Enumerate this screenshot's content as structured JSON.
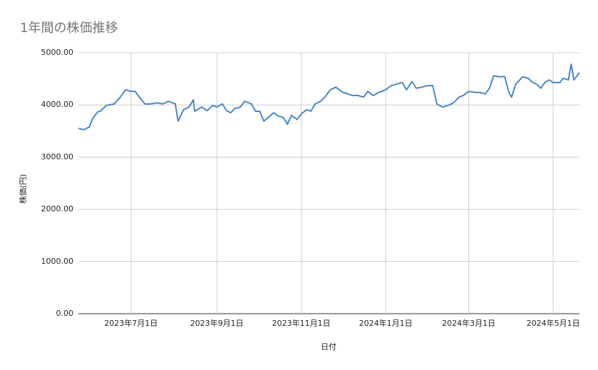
{
  "chart_data": {
    "type": "line",
    "title": "1年間の株価推移",
    "x_label": "日付",
    "y_label": "株価(円)",
    "x": [
      "2023-05-24",
      "2023-05-28",
      "2023-06-01",
      "2023-06-03",
      "2023-06-07",
      "2023-06-09",
      "2023-06-13",
      "2023-06-19",
      "2023-06-23",
      "2023-06-27",
      "2023-07-01",
      "2023-07-04",
      "2023-07-07",
      "2023-07-11",
      "2023-07-15",
      "2023-07-20",
      "2023-07-24",
      "2023-07-28",
      "2023-08-02",
      "2023-08-04",
      "2023-08-08",
      "2023-08-12",
      "2023-08-15",
      "2023-08-16",
      "2023-08-21",
      "2023-08-25",
      "2023-08-29",
      "2023-09-01",
      "2023-09-05",
      "2023-09-08",
      "2023-09-11",
      "2023-09-14",
      "2023-09-18",
      "2023-09-21",
      "2023-09-26",
      "2023-09-29",
      "2023-10-02",
      "2023-10-05",
      "2023-10-09",
      "2023-10-12",
      "2023-10-16",
      "2023-10-19",
      "2023-10-22",
      "2023-10-25",
      "2023-10-29",
      "2023-11-01",
      "2023-11-05",
      "2023-11-08",
      "2023-11-11",
      "2023-11-15",
      "2023-11-18",
      "2023-11-22",
      "2023-11-26",
      "2023-12-01",
      "2023-12-05",
      "2023-12-08",
      "2023-12-12",
      "2023-12-16",
      "2023-12-19",
      "2023-12-23",
      "2023-12-27",
      "2024-01-01",
      "2024-01-05",
      "2024-01-09",
      "2024-01-13",
      "2024-01-16",
      "2024-01-20",
      "2024-01-23",
      "2024-01-27",
      "2024-01-31",
      "2024-02-04",
      "2024-02-07",
      "2024-02-11",
      "2024-02-15",
      "2024-02-19",
      "2024-02-23",
      "2024-02-26",
      "2024-03-01",
      "2024-03-05",
      "2024-03-09",
      "2024-03-13",
      "2024-03-16",
      "2024-03-19",
      "2024-03-23",
      "2024-03-27",
      "2024-03-30",
      "2024-04-01",
      "2024-04-04",
      "2024-04-09",
      "2024-04-13",
      "2024-04-16",
      "2024-04-19",
      "2024-04-22",
      "2024-04-25",
      "2024-04-28",
      "2024-05-01",
      "2024-05-06",
      "2024-05-08",
      "2024-05-12",
      "2024-05-14",
      "2024-05-16",
      "2024-05-20"
    ],
    "series": [
      {
        "name": "株価",
        "color": "#4a86c8",
        "values": [
          3550,
          3525,
          3580,
          3730,
          3870,
          3880,
          3990,
          4020,
          4140,
          4290,
          4260,
          4260,
          4150,
          4020,
          4020,
          4040,
          4020,
          4070,
          4020,
          3690,
          3910,
          3960,
          4100,
          3880,
          3960,
          3890,
          3990,
          3960,
          4020,
          3890,
          3850,
          3930,
          3960,
          4070,
          4020,
          3880,
          3880,
          3690,
          3780,
          3850,
          3780,
          3760,
          3630,
          3800,
          3720,
          3830,
          3910,
          3880,
          4020,
          4070,
          4150,
          4290,
          4340,
          4240,
          4210,
          4180,
          4180,
          4150,
          4260,
          4180,
          4240,
          4290,
          4370,
          4400,
          4430,
          4290,
          4450,
          4320,
          4340,
          4370,
          4370,
          4020,
          3960,
          3990,
          4040,
          4150,
          4180,
          4260,
          4240,
          4240,
          4210,
          4320,
          4560,
          4540,
          4540,
          4240,
          4150,
          4400,
          4540,
          4510,
          4430,
          4400,
          4320,
          4430,
          4480,
          4430,
          4430,
          4510,
          4480,
          4780,
          4480,
          4620
        ]
      }
    ],
    "xlim": [
      "2023-05-24",
      "2024-05-20"
    ],
    "xticks": [
      {
        "value": "2023-07-01",
        "label": "2023年7月1日"
      },
      {
        "value": "2023-09-01",
        "label": "2023年9月1日"
      },
      {
        "value": "2023-11-01",
        "label": "2023年11月1日"
      },
      {
        "value": "2024-01-01",
        "label": "2024年1月1日"
      },
      {
        "value": "2024-03-01",
        "label": "2024年3月1日"
      },
      {
        "value": "2024-05-01",
        "label": "2024年5月1日"
      }
    ],
    "ylim": [
      0,
      5000
    ],
    "yticks": [
      {
        "value": 0,
        "label": "0.00"
      },
      {
        "value": 1000,
        "label": "1000.00"
      },
      {
        "value": 2000,
        "label": "2000.00"
      },
      {
        "value": 3000,
        "label": "3000.00"
      },
      {
        "value": 4000,
        "label": "4000.00"
      },
      {
        "value": 5000,
        "label": "5000.00"
      }
    ],
    "grid": true
  }
}
